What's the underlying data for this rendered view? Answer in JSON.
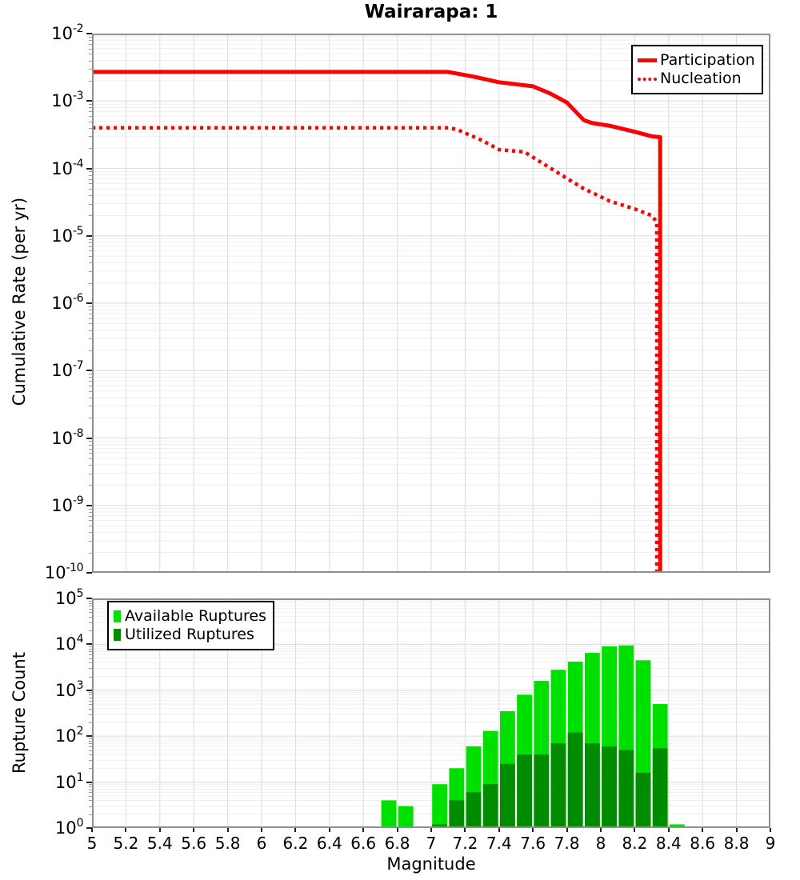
{
  "title": "Wairarapa: 1",
  "colors": {
    "participation": "#ff0000",
    "nucleation": "#ff0000",
    "available": "#00e000",
    "utilized": "#008c00",
    "grid_major": "#e0e0e0",
    "grid_minor": "#efefef",
    "grid_vertical": "#dcdcdc",
    "panel_border": "#8f8f8f"
  },
  "chart_data": [
    {
      "type": "line",
      "title": "Wairarapa: 1",
      "ylabel": "Cumulative Rate (per yr)",
      "xlabel": "",
      "x_range": [
        5,
        9
      ],
      "y_log": true,
      "y_exp_range": [
        -10,
        -2
      ],
      "grid": true,
      "legend_position": "top-right",
      "y_tick_exponents": [
        "-2",
        "-3",
        "-4",
        "-5",
        "-6",
        "-7",
        "-8",
        "-9",
        "-10"
      ],
      "legend": [
        {
          "label": "Participation",
          "style": "solid"
        },
        {
          "label": "Nucleation",
          "style": "dotted"
        }
      ],
      "series": [
        {
          "name": "Participation",
          "style": "solid",
          "color": "#ff0000",
          "points": [
            [
              5.0,
              0.0027
            ],
            [
              7.1,
              0.0027
            ],
            [
              7.25,
              0.0023
            ],
            [
              7.4,
              0.0019
            ],
            [
              7.6,
              0.00165
            ],
            [
              7.7,
              0.0013
            ],
            [
              7.8,
              0.00095
            ],
            [
              7.9,
              0.00052
            ],
            [
              7.95,
              0.00047
            ],
            [
              8.05,
              0.00043
            ],
            [
              8.2,
              0.00035
            ],
            [
              8.3,
              0.0003
            ],
            [
              8.35,
              0.00029
            ],
            [
              8.35,
              1e-10
            ]
          ]
        },
        {
          "name": "Nucleation",
          "style": "dotted",
          "color": "#ff0000",
          "points": [
            [
              5.0,
              0.0004
            ],
            [
              7.1,
              0.0004
            ],
            [
              7.15,
              0.00038
            ],
            [
              7.3,
              0.00026
            ],
            [
              7.4,
              0.00019
            ],
            [
              7.55,
              0.000175
            ],
            [
              7.75,
              8.5e-05
            ],
            [
              7.9,
              5e-05
            ],
            [
              8.05,
              3.3e-05
            ],
            [
              8.2,
              2.5e-05
            ],
            [
              8.3,
              2e-05
            ],
            [
              8.33,
              1.6e-05
            ],
            [
              8.33,
              1e-10
            ]
          ]
        }
      ]
    },
    {
      "type": "bar",
      "title": "",
      "ylabel": "Rupture Count",
      "xlabel": "Magnitude",
      "x_range": [
        5,
        9
      ],
      "y_log": true,
      "y_exp_range": [
        0,
        5
      ],
      "grid": true,
      "legend_position": "top-left",
      "bin_width": 0.1,
      "y_tick_exponents": [
        "5",
        "4",
        "3",
        "2",
        "1",
        "0"
      ],
      "x_tick_labels": [
        "5",
        "5.2",
        "5.4",
        "5.6",
        "5.8",
        "6",
        "6.2",
        "6.4",
        "6.6",
        "6.8",
        "7",
        "7.2",
        "7.4",
        "7.6",
        "7.8",
        "8",
        "8.2",
        "8.4",
        "8.6",
        "8.8",
        "9"
      ],
      "legend": [
        {
          "label": "Available Ruptures",
          "key": "available"
        },
        {
          "label": "Utilized Ruptures",
          "key": "utilized"
        }
      ],
      "bars": {
        "centers": [
          6.75,
          6.85,
          7.05,
          7.15,
          7.25,
          7.35,
          7.45,
          7.55,
          7.65,
          7.75,
          7.85,
          7.95,
          8.05,
          8.15,
          8.25,
          8.35,
          8.45
        ],
        "available": [
          4,
          3,
          9,
          20,
          60,
          130,
          350,
          800,
          1600,
          2800,
          4200,
          6500,
          9000,
          9500,
          4500,
          500,
          1.2
        ],
        "utilized": [
          0,
          0,
          1.2,
          4,
          6,
          9,
          25,
          40,
          40,
          70,
          120,
          70,
          60,
          50,
          16,
          55,
          0
        ]
      }
    }
  ]
}
